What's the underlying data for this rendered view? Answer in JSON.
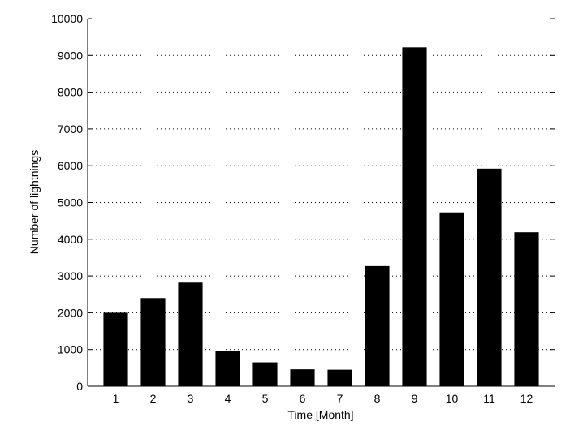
{
  "chart_data": {
    "type": "bar",
    "categories": [
      "1",
      "2",
      "3",
      "4",
      "5",
      "6",
      "7",
      "8",
      "9",
      "10",
      "11",
      "12"
    ],
    "values": [
      2000,
      2400,
      2820,
      960,
      650,
      460,
      450,
      3270,
      9220,
      4730,
      5920,
      4190
    ],
    "title": "",
    "xlabel": "Time [Month]",
    "ylabel": "Number of lightnings",
    "ylim": [
      0,
      10000
    ],
    "yticks": [
      0,
      1000,
      2000,
      3000,
      4000,
      5000,
      6000,
      7000,
      8000,
      9000,
      10000
    ],
    "grid": "horizontal dotted",
    "colors": {
      "bar": "#000000",
      "grid": "#000000"
    }
  }
}
